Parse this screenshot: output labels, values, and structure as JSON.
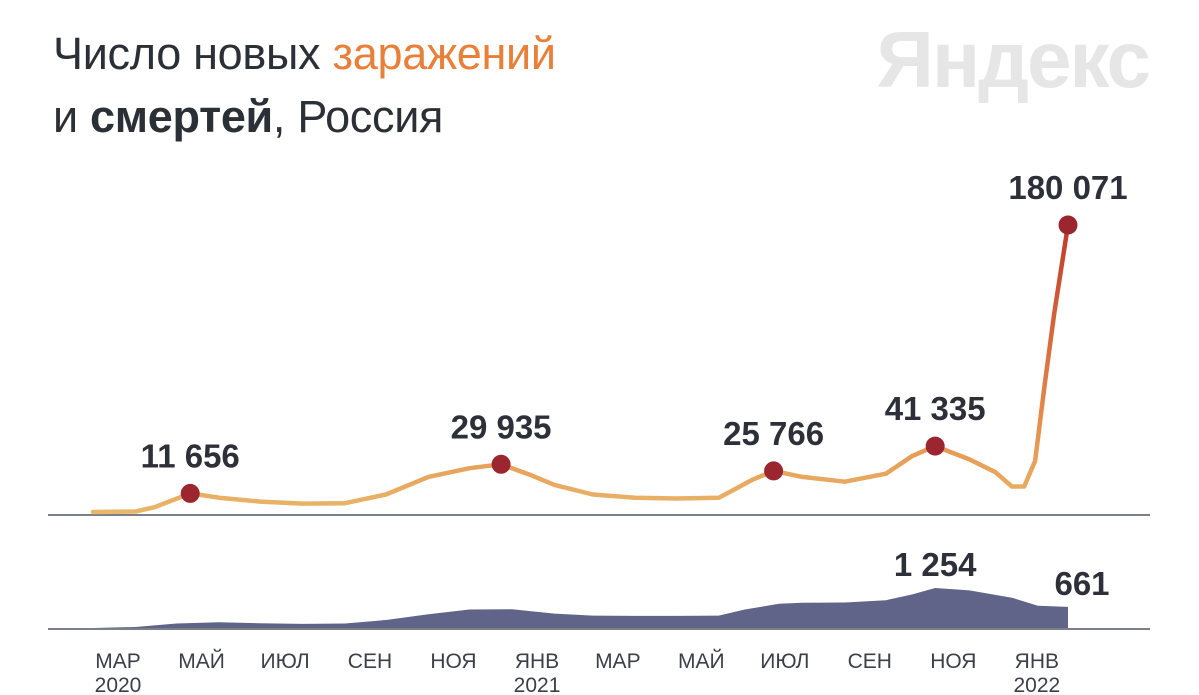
{
  "title": {
    "part1": "Число новых ",
    "part2": "заражений",
    "part3": "и ",
    "part4": "смертей",
    "part5": ", Россия"
  },
  "brand": "Яндекс",
  "colors": {
    "infections_line": "#e8b86a",
    "infections_surge": "#c0392b",
    "peak_marker": "#9b2630",
    "deaths_area": "#5f6488",
    "baseline": "#7b7f88"
  },
  "chart_data": [
    {
      "type": "line",
      "x": [
        "2020-03-01",
        "2020-04-01",
        "2020-04-15",
        "2020-05-11",
        "2020-06-01",
        "2020-07-01",
        "2020-08-01",
        "2020-09-01",
        "2020-10-01",
        "2020-11-01",
        "2020-12-01",
        "2020-12-24",
        "2021-01-15",
        "2021-02-01",
        "2021-03-01",
        "2021-04-01",
        "2021-05-01",
        "2021-06-01",
        "2021-06-10",
        "2021-06-25",
        "2021-07-11",
        "2021-08-01",
        "2021-09-01",
        "2021-10-01",
        "2021-10-20",
        "2021-11-06",
        "2021-12-01",
        "2021-12-20",
        "2022-01-01",
        "2022-01-10",
        "2022-01-18",
        "2022-01-25",
        "2022-02-01",
        "2022-02-11"
      ],
      "series": [
        {
          "values": [
            0,
            300,
            3000,
            11656,
            9000,
            6500,
            5300,
            5500,
            11000,
            22000,
            27500,
            29935,
            23000,
            17000,
            11000,
            9000,
            8500,
            9000,
            13000,
            20000,
            25766,
            22000,
            19000,
            24000,
            35000,
            41335,
            33000,
            25000,
            16000,
            16000,
            32000,
            80000,
            125000,
            180071
          ]
        }
      ],
      "peak_labels": [
        {
          "x": "2020-05-11",
          "value": 11656,
          "text": "11 656"
        },
        {
          "x": "2020-12-24",
          "value": 29935,
          "text": "29 935"
        },
        {
          "x": "2021-07-11",
          "value": 25766,
          "text": "25 766"
        },
        {
          "x": "2021-11-06",
          "value": 41335,
          "text": "41 335"
        },
        {
          "x": "2022-02-11",
          "value": 180071,
          "text": "180 071"
        }
      ],
      "xlim": [
        "2020-03-01",
        "2022-02-11"
      ]
    },
    {
      "type": "area",
      "x": [
        "2020-03-01",
        "2020-04-01",
        "2020-05-01",
        "2020-06-01",
        "2020-07-01",
        "2020-08-01",
        "2020-09-01",
        "2020-10-01",
        "2020-11-01",
        "2020-12-01",
        "2021-01-01",
        "2021-02-01",
        "2021-03-01",
        "2021-04-01",
        "2021-05-01",
        "2021-06-01",
        "2021-06-20",
        "2021-07-15",
        "2021-08-01",
        "2021-09-01",
        "2021-10-01",
        "2021-10-20",
        "2021-11-06",
        "2021-12-01",
        "2022-01-01",
        "2022-01-20",
        "2022-02-11"
      ],
      "series": [
        {
          "values": [
            0,
            30,
            140,
            180,
            150,
            130,
            140,
            250,
            430,
            580,
            590,
            450,
            390,
            380,
            380,
            390,
            580,
            760,
            790,
            800,
            870,
            1050,
            1254,
            1180,
            950,
            700,
            661
          ]
        }
      ],
      "peak_labels": [
        {
          "x": "2021-11-06",
          "value": 1254,
          "text": "1 254"
        },
        {
          "x": "2022-02-11",
          "value": 661,
          "text": "661"
        }
      ],
      "xlim": [
        "2020-03-01",
        "2022-02-11"
      ]
    }
  ],
  "x_axis": {
    "ticks": [
      {
        "date": "2020-03-01",
        "label": "МАР",
        "year": "2020"
      },
      {
        "date": "2020-05-01",
        "label": "МАЙ",
        "year": ""
      },
      {
        "date": "2020-07-01",
        "label": "ИЮЛ",
        "year": ""
      },
      {
        "date": "2020-09-01",
        "label": "СЕН",
        "year": ""
      },
      {
        "date": "2020-11-01",
        "label": "НОЯ",
        "year": ""
      },
      {
        "date": "2021-01-01",
        "label": "ЯНВ",
        "year": "2021"
      },
      {
        "date": "2021-03-01",
        "label": "МАР",
        "year": ""
      },
      {
        "date": "2021-05-01",
        "label": "МАЙ",
        "year": ""
      },
      {
        "date": "2021-07-01",
        "label": "ИЮЛ",
        "year": ""
      },
      {
        "date": "2021-09-01",
        "label": "СЕН",
        "year": ""
      },
      {
        "date": "2021-11-01",
        "label": "НОЯ",
        "year": ""
      },
      {
        "date": "2022-01-01",
        "label": "ЯНВ",
        "year": "2022"
      }
    ]
  }
}
